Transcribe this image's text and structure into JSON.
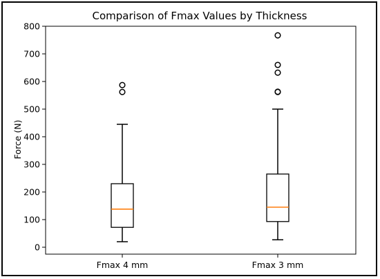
{
  "chart_data": {
    "type": "box",
    "title": "Comparison of Fmax Values by Thickness",
    "xlabel": "",
    "ylabel": "Force (N)",
    "ylim": [
      -25,
      800
    ],
    "yticks": [
      0,
      100,
      200,
      300,
      400,
      500,
      600,
      700,
      800
    ],
    "grid": false,
    "series": [
      {
        "name": "Fmax 4 mm",
        "whisker_low": 20,
        "q1": 72,
        "median": 138,
        "q3": 230,
        "whisker_high": 445,
        "outliers": [
          562,
          587
        ]
      },
      {
        "name": "Fmax 3 mm",
        "whisker_low": 27,
        "q1": 93,
        "median": 145,
        "q3": 265,
        "whisker_high": 500,
        "outliers": [
          562,
          563,
          632,
          660,
          767
        ]
      }
    ],
    "colors": {
      "box": "#000000",
      "median": "#ff7f0e",
      "outlier": "#000000"
    }
  }
}
